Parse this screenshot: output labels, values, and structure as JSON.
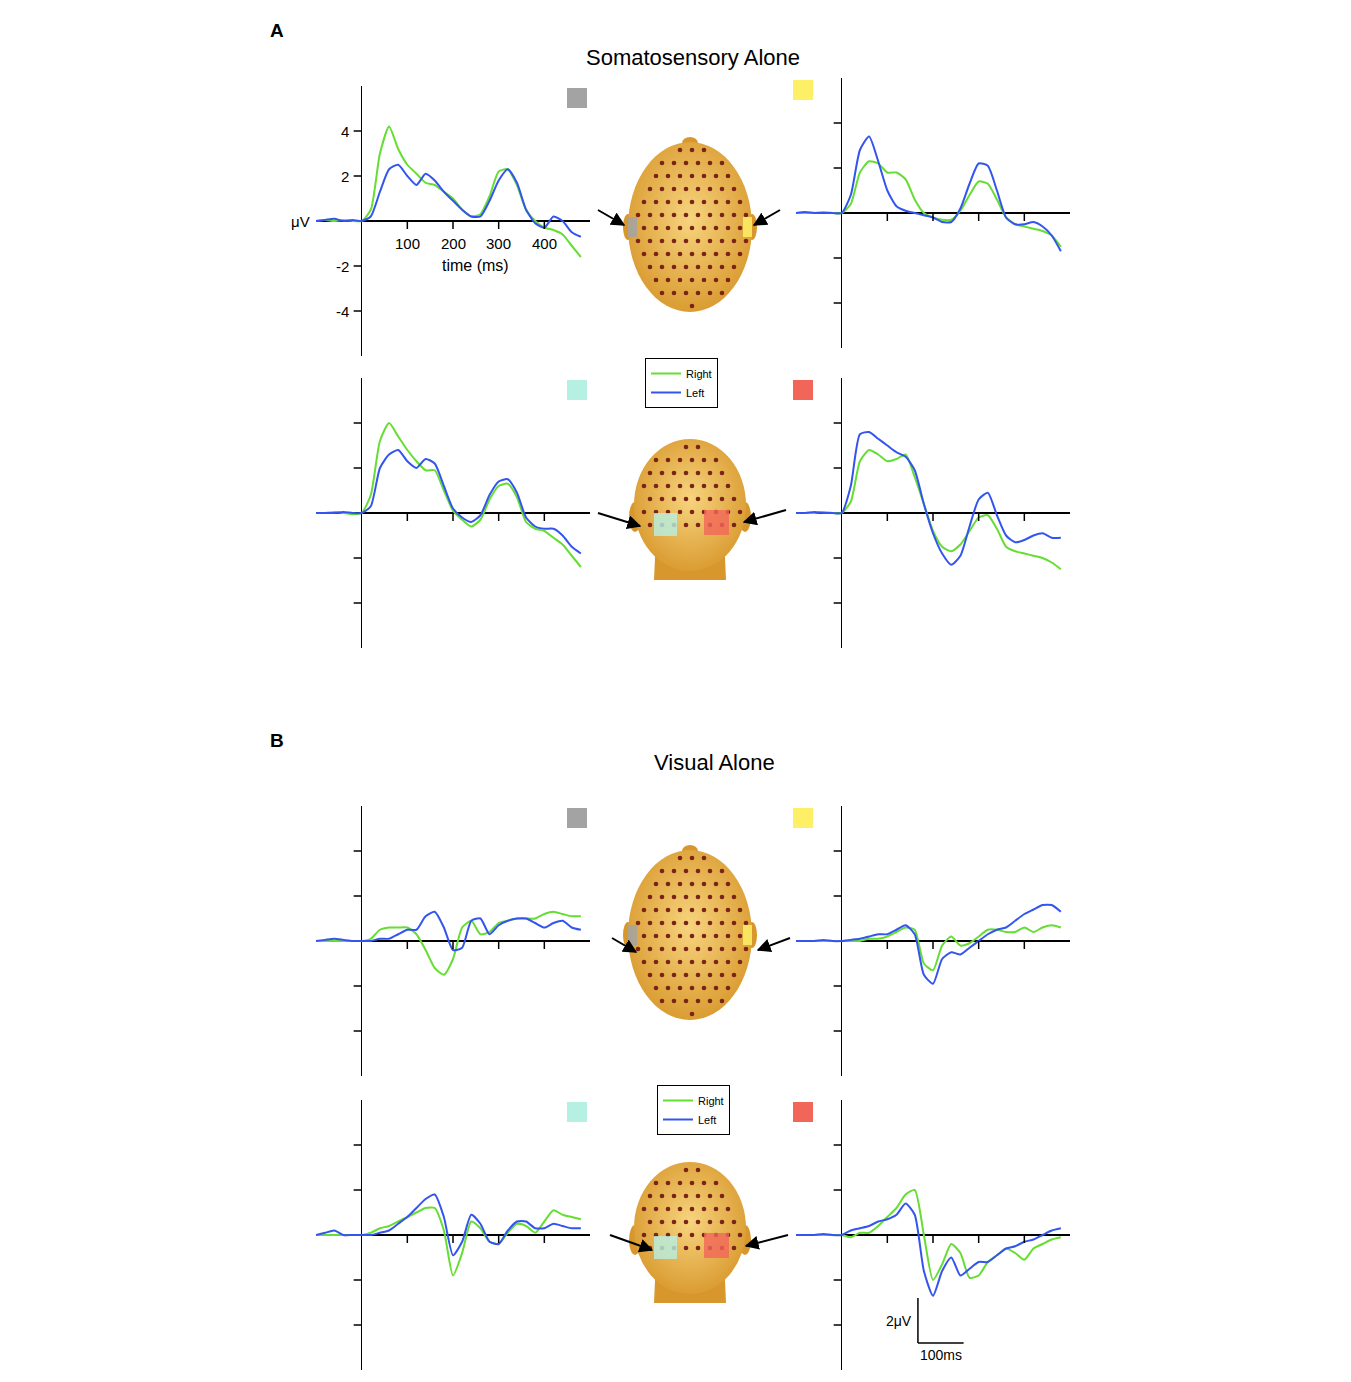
{
  "panels": [
    {
      "label": "A",
      "title": "Somatosensory Alone"
    },
    {
      "label": "B",
      "title": "Visual Alone"
    }
  ],
  "chart_data": [
    {
      "type": "line",
      "color": "#a3a3a3",
      "legend": "center",
      "xlabel": "time (ms)",
      "x": [
        -100,
        -80,
        -60,
        -40,
        -20,
        0,
        20,
        40,
        60,
        80,
        100,
        120,
        140,
        160,
        180,
        200,
        220,
        240,
        260,
        280,
        300,
        320,
        340,
        360,
        380,
        400,
        420,
        440,
        460,
        480
      ],
      "xlim": [
        -100,
        500
      ],
      "ylim": [
        -6,
        6
      ],
      "xticks": [
        100,
        200,
        300,
        400
      ],
      "yticks": [
        4,
        2,
        {
          "value": 0,
          "label": "μV"
        },
        -2,
        -4
      ],
      "series": [
        {
          "name": "Right",
          "color": "#66dd33",
          "values": [
            0,
            0.05,
            0,
            0.05,
            0,
            0,
            0.5,
            3.0,
            4.2,
            3.2,
            2.5,
            2.1,
            1.7,
            1.6,
            1.3,
            1.0,
            0.5,
            0.2,
            0.3,
            1.1,
            2.2,
            2.3,
            1.6,
            0.5,
            0,
            -0.3,
            -0.4,
            -0.6,
            -1.1,
            -1.6
          ]
        },
        {
          "name": "Left",
          "color": "#3355ee",
          "values": [
            0,
            0.05,
            0.1,
            0,
            0.05,
            0,
            0.2,
            1.3,
            2.3,
            2.5,
            2.0,
            1.6,
            2.1,
            1.8,
            1.3,
            0.9,
            0.5,
            0.2,
            0.2,
            0.9,
            1.8,
            2.3,
            1.7,
            0.5,
            -0.1,
            -0.3,
            0.2,
            0,
            -0.5,
            -0.7
          ]
        }
      ]
    },
    {
      "type": "line",
      "color": "#fdf066",
      "tick_labels": false,
      "x": [
        -100,
        -80,
        -60,
        -40,
        -20,
        0,
        20,
        40,
        60,
        80,
        100,
        120,
        140,
        160,
        180,
        200,
        220,
        240,
        260,
        280,
        300,
        320,
        340,
        360,
        380,
        400,
        420,
        440,
        460,
        480
      ],
      "xlim": [
        -100,
        500
      ],
      "ylim": [
        -6,
        6
      ],
      "xticks": [
        100,
        200,
        300,
        400
      ],
      "yticks": [
        4,
        2,
        -2,
        -4
      ],
      "series": [
        {
          "name": "Right",
          "color": "#66dd33",
          "values": [
            0,
            0,
            0,
            0.05,
            0,
            0,
            0.4,
            1.8,
            2.3,
            2.2,
            1.8,
            1.8,
            1.5,
            0.6,
            0,
            -0.2,
            -0.3,
            -0.3,
            0.1,
            0.8,
            1.4,
            1.3,
            0.6,
            -0.2,
            -0.5,
            -0.6,
            -0.7,
            -0.8,
            -1.0,
            -1.5
          ]
        },
        {
          "name": "Left",
          "color": "#3355ee",
          "values": [
            0,
            0.05,
            0,
            0,
            0,
            0,
            0.8,
            2.8,
            3.4,
            2.3,
            1.0,
            0.3,
            0.1,
            0,
            -0.1,
            -0.2,
            -0.4,
            -0.4,
            0.2,
            1.3,
            2.2,
            2.1,
            1.0,
            -0.2,
            -0.5,
            -0.5,
            -0.4,
            -0.6,
            -1.0,
            -1.7
          ]
        }
      ]
    },
    {
      "type": "line",
      "color": "#b6f0e3",
      "tick_labels": false,
      "x": [
        -100,
        -80,
        -60,
        -40,
        -20,
        0,
        20,
        40,
        60,
        80,
        100,
        120,
        140,
        160,
        180,
        200,
        220,
        240,
        260,
        280,
        300,
        320,
        340,
        360,
        380,
        400,
        420,
        440,
        460,
        480
      ],
      "xlim": [
        -100,
        500
      ],
      "ylim": [
        -6,
        6
      ],
      "xticks": [
        100,
        200,
        300,
        400
      ],
      "yticks": [
        4,
        2,
        -2,
        -4
      ],
      "series": [
        {
          "name": "Right",
          "color": "#66dd33",
          "values": [
            0,
            0,
            0.05,
            0,
            -0.05,
            0,
            0.8,
            3.2,
            4.0,
            3.4,
            2.8,
            2.3,
            1.9,
            1.9,
            1.0,
            0.1,
            -0.3,
            -0.6,
            -0.3,
            0.6,
            1.2,
            1.3,
            0.7,
            -0.4,
            -0.7,
            -0.8,
            -1.1,
            -1.4,
            -1.9,
            -2.4
          ]
        },
        {
          "name": "Left",
          "color": "#3355ee",
          "values": [
            0,
            0,
            0,
            0.05,
            0,
            0,
            0.3,
            2.0,
            2.6,
            2.8,
            2.3,
            2.0,
            2.4,
            2.2,
            1.2,
            0.2,
            -0.2,
            -0.4,
            -0.1,
            0.8,
            1.4,
            1.5,
            0.9,
            -0.2,
            -0.6,
            -0.7,
            -0.7,
            -1.0,
            -1.5,
            -1.8
          ]
        }
      ]
    },
    {
      "type": "line",
      "color": "#f2665a",
      "tick_labels": false,
      "x": [
        -100,
        -80,
        -60,
        -40,
        -20,
        0,
        20,
        40,
        60,
        80,
        100,
        120,
        140,
        160,
        180,
        200,
        220,
        240,
        260,
        280,
        300,
        320,
        340,
        360,
        380,
        400,
        420,
        440,
        460,
        480
      ],
      "xlim": [
        -100,
        500
      ],
      "ylim": [
        -6,
        6
      ],
      "xticks": [
        100,
        200,
        300,
        400
      ],
      "yticks": [
        4,
        2,
        -2,
        -4
      ],
      "series": [
        {
          "name": "Right",
          "color": "#66dd33",
          "values": [
            0,
            0,
            0,
            0.05,
            0,
            0,
            0.5,
            2.3,
            2.8,
            2.6,
            2.3,
            2.4,
            2.6,
            1.6,
            0.4,
            -0.8,
            -1.5,
            -1.7,
            -1.4,
            -0.8,
            -0.2,
            -0.1,
            -0.7,
            -1.5,
            -1.7,
            -1.8,
            -1.9,
            -2.0,
            -2.2,
            -2.5
          ]
        },
        {
          "name": "Left",
          "color": "#3355ee",
          "values": [
            0,
            0,
            0.05,
            0,
            0,
            0,
            1.2,
            3.5,
            3.6,
            3.3,
            3.0,
            2.7,
            2.5,
            1.9,
            0.4,
            -0.9,
            -1.8,
            -2.3,
            -1.9,
            -0.6,
            0.6,
            0.9,
            -0.1,
            -1.0,
            -1.3,
            -1.2,
            -1.0,
            -0.9,
            -1.1,
            -1.1
          ]
        }
      ]
    },
    {
      "type": "line",
      "color": "#a3a3a3",
      "legend": "center",
      "tick_labels": false,
      "x": [
        -100,
        -80,
        -60,
        -40,
        -20,
        0,
        20,
        40,
        60,
        80,
        100,
        120,
        140,
        160,
        180,
        200,
        220,
        240,
        260,
        280,
        300,
        320,
        340,
        360,
        380,
        400,
        420,
        440,
        460,
        480
      ],
      "xlim": [
        -100,
        500
      ],
      "ylim": [
        -6,
        6
      ],
      "xticks": [
        100,
        200,
        300,
        400
      ],
      "yticks": [
        4,
        2,
        -2,
        -4
      ],
      "series": [
        {
          "name": "Right",
          "color": "#66dd33",
          "values": [
            0,
            0,
            0,
            0,
            0,
            0,
            0.1,
            0.5,
            0.6,
            0.6,
            0.6,
            0.3,
            -0.4,
            -1.2,
            -1.5,
            -0.8,
            0.6,
            0.9,
            0.3,
            0.4,
            0.8,
            0.9,
            1.0,
            1.0,
            1.0,
            1.2,
            1.3,
            1.2,
            1.1,
            1.1
          ]
        },
        {
          "name": "Left",
          "color": "#3355ee",
          "values": [
            0,
            0.05,
            0.1,
            0.05,
            0,
            0,
            0,
            0.1,
            0.1,
            0.3,
            0.5,
            0.5,
            1.1,
            1.3,
            0.6,
            -0.4,
            -0.3,
            0.9,
            1.0,
            0.3,
            0.7,
            0.9,
            1.0,
            1.0,
            0.8,
            0.6,
            0.8,
            0.9,
            0.6,
            0.5
          ]
        }
      ]
    },
    {
      "type": "line",
      "color": "#fdf066",
      "tick_labels": false,
      "x": [
        -100,
        -80,
        -60,
        -40,
        -20,
        0,
        20,
        40,
        60,
        80,
        100,
        120,
        140,
        160,
        180,
        200,
        220,
        240,
        260,
        280,
        300,
        320,
        340,
        360,
        380,
        400,
        420,
        440,
        460,
        480
      ],
      "xlim": [
        -100,
        500
      ],
      "ylim": [
        -6,
        6
      ],
      "xticks": [
        100,
        200,
        300,
        400
      ],
      "yticks": [
        4,
        2,
        -2,
        -4
      ],
      "series": [
        {
          "name": "Right",
          "color": "#66dd33",
          "values": [
            0,
            0,
            0,
            0,
            0,
            0,
            0,
            0,
            0.1,
            0.1,
            0.2,
            0.4,
            0.6,
            0.5,
            -1.0,
            -1.3,
            -0.2,
            0.2,
            -0.2,
            -0.1,
            0.2,
            0.5,
            0.5,
            0.4,
            0.4,
            0.6,
            0.4,
            0.6,
            0.7,
            0.6
          ]
        },
        {
          "name": "Left",
          "color": "#3355ee",
          "values": [
            0,
            0,
            0,
            0.05,
            0,
            0,
            0.05,
            0.1,
            0.2,
            0.3,
            0.3,
            0.5,
            0.7,
            0.3,
            -1.5,
            -1.9,
            -0.8,
            -0.5,
            -0.6,
            -0.3,
            0,
            0.3,
            0.5,
            0.6,
            0.9,
            1.2,
            1.4,
            1.6,
            1.6,
            1.3
          ]
        }
      ]
    },
    {
      "type": "line",
      "color": "#b6f0e3",
      "tick_labels": false,
      "x": [
        -100,
        -80,
        -60,
        -40,
        -20,
        0,
        20,
        40,
        60,
        80,
        100,
        120,
        140,
        160,
        180,
        200,
        220,
        240,
        260,
        280,
        300,
        320,
        340,
        360,
        380,
        400,
        420,
        440,
        460,
        480
      ],
      "xlim": [
        -100,
        500
      ],
      "ylim": [
        -6,
        6
      ],
      "xticks": [
        100,
        200,
        300,
        400
      ],
      "yticks": [
        4,
        2,
        -2,
        -4
      ],
      "series": [
        {
          "name": "Right",
          "color": "#66dd33",
          "values": [
            0,
            0,
            0,
            0,
            0,
            0,
            0.1,
            0.3,
            0.4,
            0.6,
            0.8,
            1.0,
            1.2,
            1.2,
            0.2,
            -1.8,
            -0.8,
            0.6,
            0.3,
            -0.3,
            -0.4,
            0.1,
            0.5,
            0.4,
            0.1,
            0.6,
            1.1,
            0.9,
            0.8,
            0.7
          ]
        },
        {
          "name": "Left",
          "color": "#3355ee",
          "values": [
            0,
            0.1,
            0.2,
            0,
            0,
            0,
            0,
            0.1,
            0.2,
            0.5,
            0.8,
            1.2,
            1.6,
            1.8,
            0.8,
            -0.9,
            -0.3,
            0.9,
            0.5,
            -0.3,
            -0.4,
            0.2,
            0.6,
            0.6,
            0.3,
            0.3,
            0.5,
            0.4,
            0.3,
            0.3
          ]
        }
      ]
    },
    {
      "type": "line",
      "color": "#f2665a",
      "tick_labels": false,
      "x": [
        -100,
        -80,
        -60,
        -40,
        -20,
        0,
        20,
        40,
        60,
        80,
        100,
        120,
        140,
        160,
        180,
        200,
        220,
        240,
        260,
        280,
        300,
        320,
        340,
        360,
        380,
        400,
        420,
        440,
        460,
        480
      ],
      "xlim": [
        -100,
        500
      ],
      "ylim": [
        -6,
        6
      ],
      "xticks": [
        100,
        200,
        300,
        400
      ],
      "yticks": [
        4,
        2,
        -2,
        -4
      ],
      "scale_bar": {
        "x_size": 100,
        "x_label": "100ms",
        "y_size": 2,
        "y_label": "2μV"
      },
      "series": [
        {
          "name": "Right",
          "color": "#66dd33",
          "values": [
            0,
            0,
            0,
            0,
            0,
            0,
            -0.1,
            0.1,
            0.1,
            0.4,
            0.8,
            1.2,
            1.8,
            2.0,
            0,
            -2.0,
            -1.3,
            -0.4,
            -0.8,
            -1.9,
            -1.8,
            -1.2,
            -0.9,
            -0.6,
            -0.8,
            -1.1,
            -0.6,
            -0.4,
            -0.2,
            -0.1
          ]
        },
        {
          "name": "Left",
          "color": "#3355ee",
          "values": [
            0,
            0,
            0,
            0.05,
            0,
            0,
            0.2,
            0.3,
            0.4,
            0.6,
            0.7,
            0.9,
            1.4,
            0.9,
            -1.6,
            -2.7,
            -1.6,
            -1.0,
            -1.8,
            -1.5,
            -1.2,
            -1.2,
            -0.9,
            -0.6,
            -0.5,
            -0.3,
            -0.2,
            0,
            0.2,
            0.3
          ]
        }
      ]
    }
  ]
}
